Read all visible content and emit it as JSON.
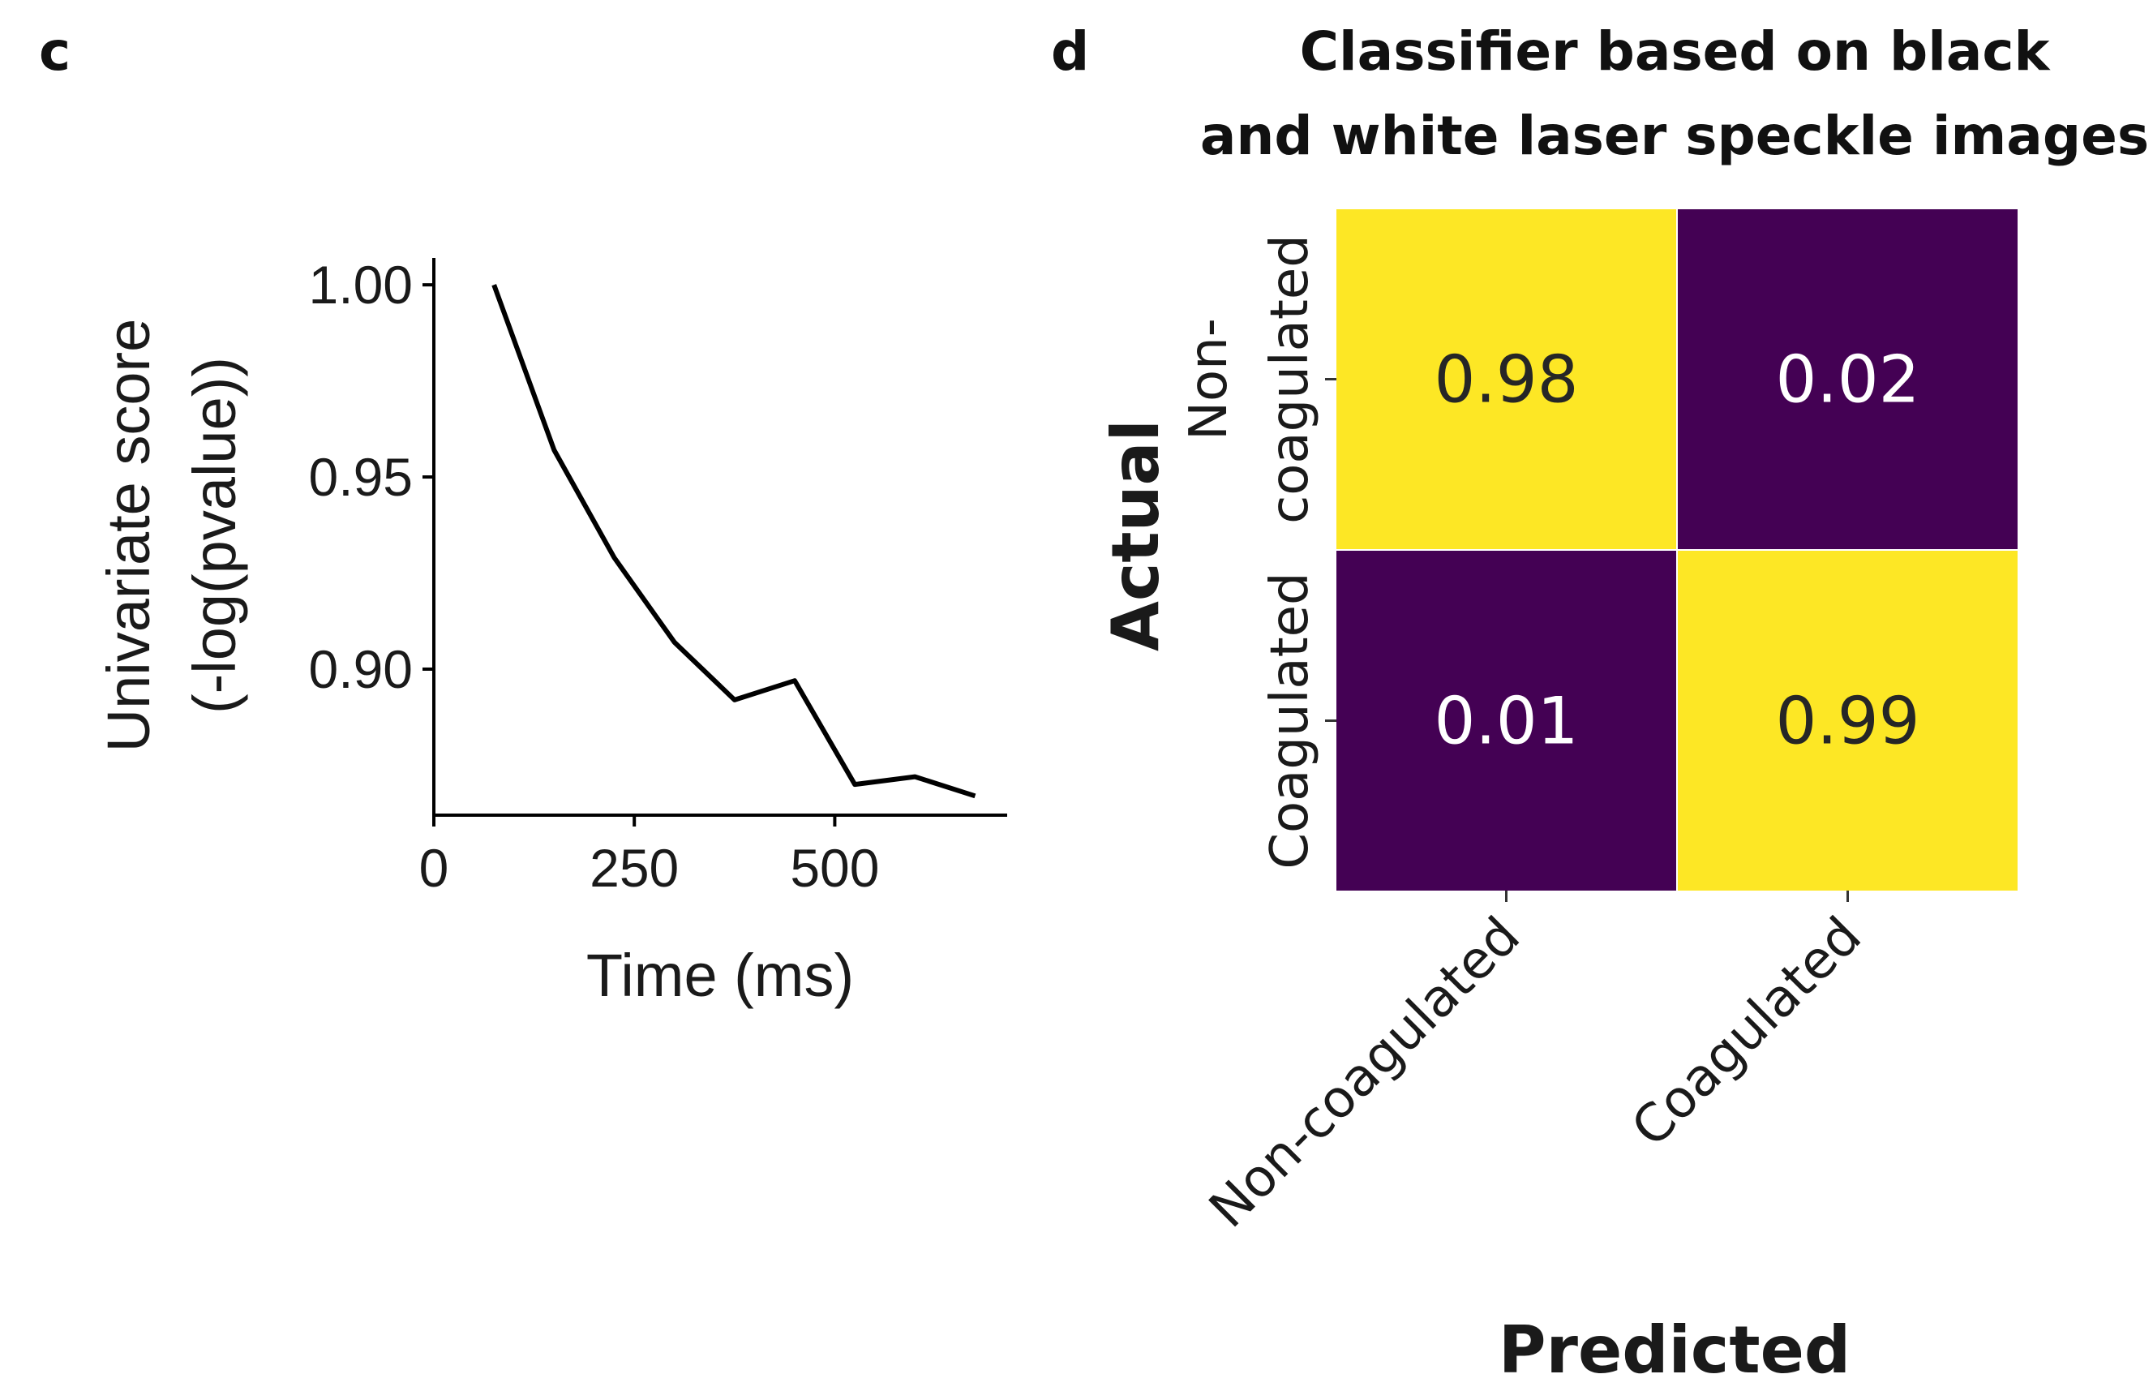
{
  "chart_data": [
    {
      "panel": "c",
      "type": "line",
      "title": "",
      "xlabel": "Time (ms)",
      "ylabel_line1": "Univariate score",
      "ylabel_line2": "(-log(pvalue))",
      "x": [
        75,
        150,
        225,
        300,
        375,
        450,
        525,
        600,
        675
      ],
      "y": [
        1.0,
        0.957,
        0.929,
        0.907,
        0.892,
        0.897,
        0.87,
        0.872,
        0.867
      ],
      "xlim": [
        0,
        715
      ],
      "ylim": [
        0.862,
        1.007
      ],
      "xticks": [
        0,
        250,
        500
      ],
      "xtick_labels": [
        "0",
        "250",
        "500"
      ],
      "yticks": [
        0.9,
        0.95,
        1.0
      ],
      "ytick_labels": [
        "0.90",
        "0.95",
        "1.00"
      ],
      "line_color": "#000000",
      "grid": false
    },
    {
      "panel": "d",
      "type": "heatmap",
      "title_line1": "Classifier based on  black",
      "title_line2": "and white laser speckle images",
      "xlabel": "Predicted",
      "ylabel": "Actual",
      "x_categories": [
        "Non-coagulated",
        "Coagulated"
      ],
      "y_categories_line1": [
        "Non-",
        "Coagulated"
      ],
      "y_categories_line2": [
        "coagulated",
        ""
      ],
      "values": [
        [
          0.98,
          0.02
        ],
        [
          0.01,
          0.99
        ]
      ],
      "value_labels": [
        [
          "0.98",
          "0.02"
        ],
        [
          "0.01",
          "0.99"
        ]
      ],
      "colormap": "viridis",
      "low_color": "#440154",
      "high_color": "#fde725",
      "dark_text_color": "#262626",
      "light_text_color": "#ffffff"
    }
  ]
}
